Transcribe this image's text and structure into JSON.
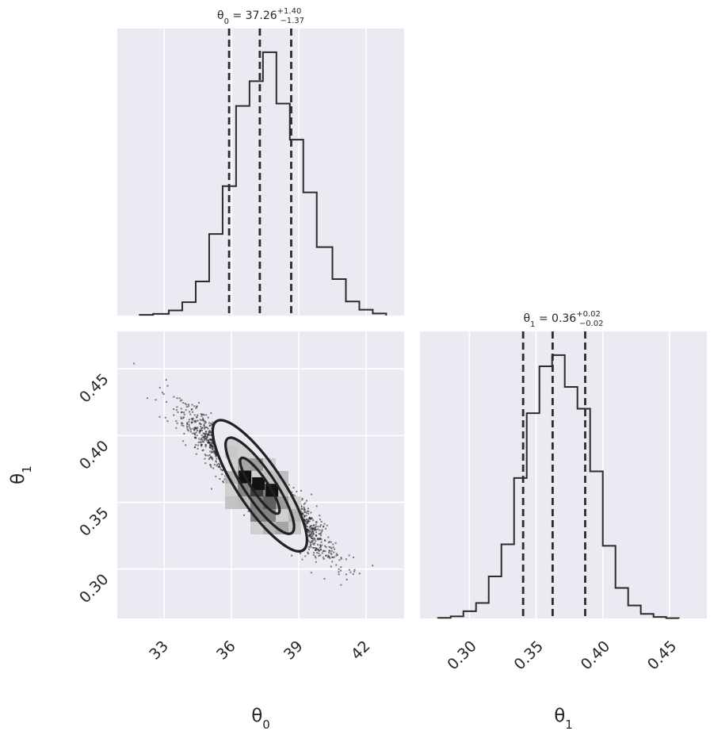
{
  "chart_data": {
    "type": "corner",
    "parameters": [
      {
        "name_html": "θ<tspan baseline-shift='sub' font-size='15'>0</tspan>",
        "name_plain": "θ0",
        "median": 37.26,
        "plus": 1.4,
        "minus": 1.37,
        "title_main": "θ0 = 37.26",
        "title_sup": "+1.40",
        "title_sub": "−1.37",
        "range": [
          30.9,
          43.7
        ],
        "ticks": [
          33,
          36,
          39,
          42
        ],
        "hist": {
          "edges": [
            31.9,
            32.5,
            33.2,
            33.8,
            34.4,
            35.0,
            35.6,
            36.2,
            36.8,
            37.4,
            38.0,
            38.6,
            39.2,
            39.8,
            40.5,
            41.1,
            41.7,
            42.3,
            42.9
          ],
          "counts": [
            0.2,
            0.5,
            1.5,
            3.9,
            9.9,
            23.7,
            37.6,
            60.9,
            68.1,
            76.5,
            61.6,
            51.1,
            35.8,
            19.9,
            10.6,
            4.1,
            1.7,
            0.6
          ]
        },
        "quantiles": [
          35.89,
          37.26,
          38.66
        ]
      },
      {
        "name_html": "θ<tspan baseline-shift='sub' font-size='15'>1</tspan>",
        "name_plain": "θ1",
        "median": 0.36,
        "plus": 0.02,
        "minus": 0.02,
        "title_main": "θ1 = 0.36",
        "title_sup": "+0.02",
        "title_sub": "−0.02",
        "range": [
          0.263,
          0.478
        ],
        "ticks": [
          0.3,
          0.35,
          0.4,
          0.45
        ],
        "tick_labels": [
          "0.30",
          "0.35",
          "0.40",
          "0.45"
        ],
        "hist": {
          "edges": [
            0.2765,
            0.286,
            0.2955,
            0.305,
            0.3145,
            0.324,
            0.3335,
            0.343,
            0.3525,
            0.362,
            0.3715,
            0.381,
            0.3905,
            0.4,
            0.4095,
            0.419,
            0.4285,
            0.438,
            0.4475,
            0.457
          ],
          "counts": [
            0.2,
            0.7,
            2.4,
            5.1,
            13.9,
            24.5,
            46.4,
            67.8,
            83.3,
            87.0,
            76.5,
            69.3,
            48.6,
            24.0,
            10.1,
            4.3,
            1.5,
            0.5,
            0.1
          ]
        },
        "quantiles": [
          0.3403,
          0.3624,
          0.3868
        ]
      }
    ],
    "scatter2d": {
      "center": [
        37.26,
        0.3624
      ],
      "sd": [
        1.39,
        0.0233
      ],
      "corr": -0.93
    },
    "contour_levels": [
      0.39,
      0.86,
      0.99
    ],
    "peak_cells": [
      [
        37.2,
        0.364
      ],
      [
        36.6,
        0.369
      ],
      [
        37.8,
        0.359
      ]
    ],
    "grid": true,
    "labels": {
      "x_left": "θ0",
      "x_right": "θ1",
      "y_left": "θ1"
    }
  }
}
